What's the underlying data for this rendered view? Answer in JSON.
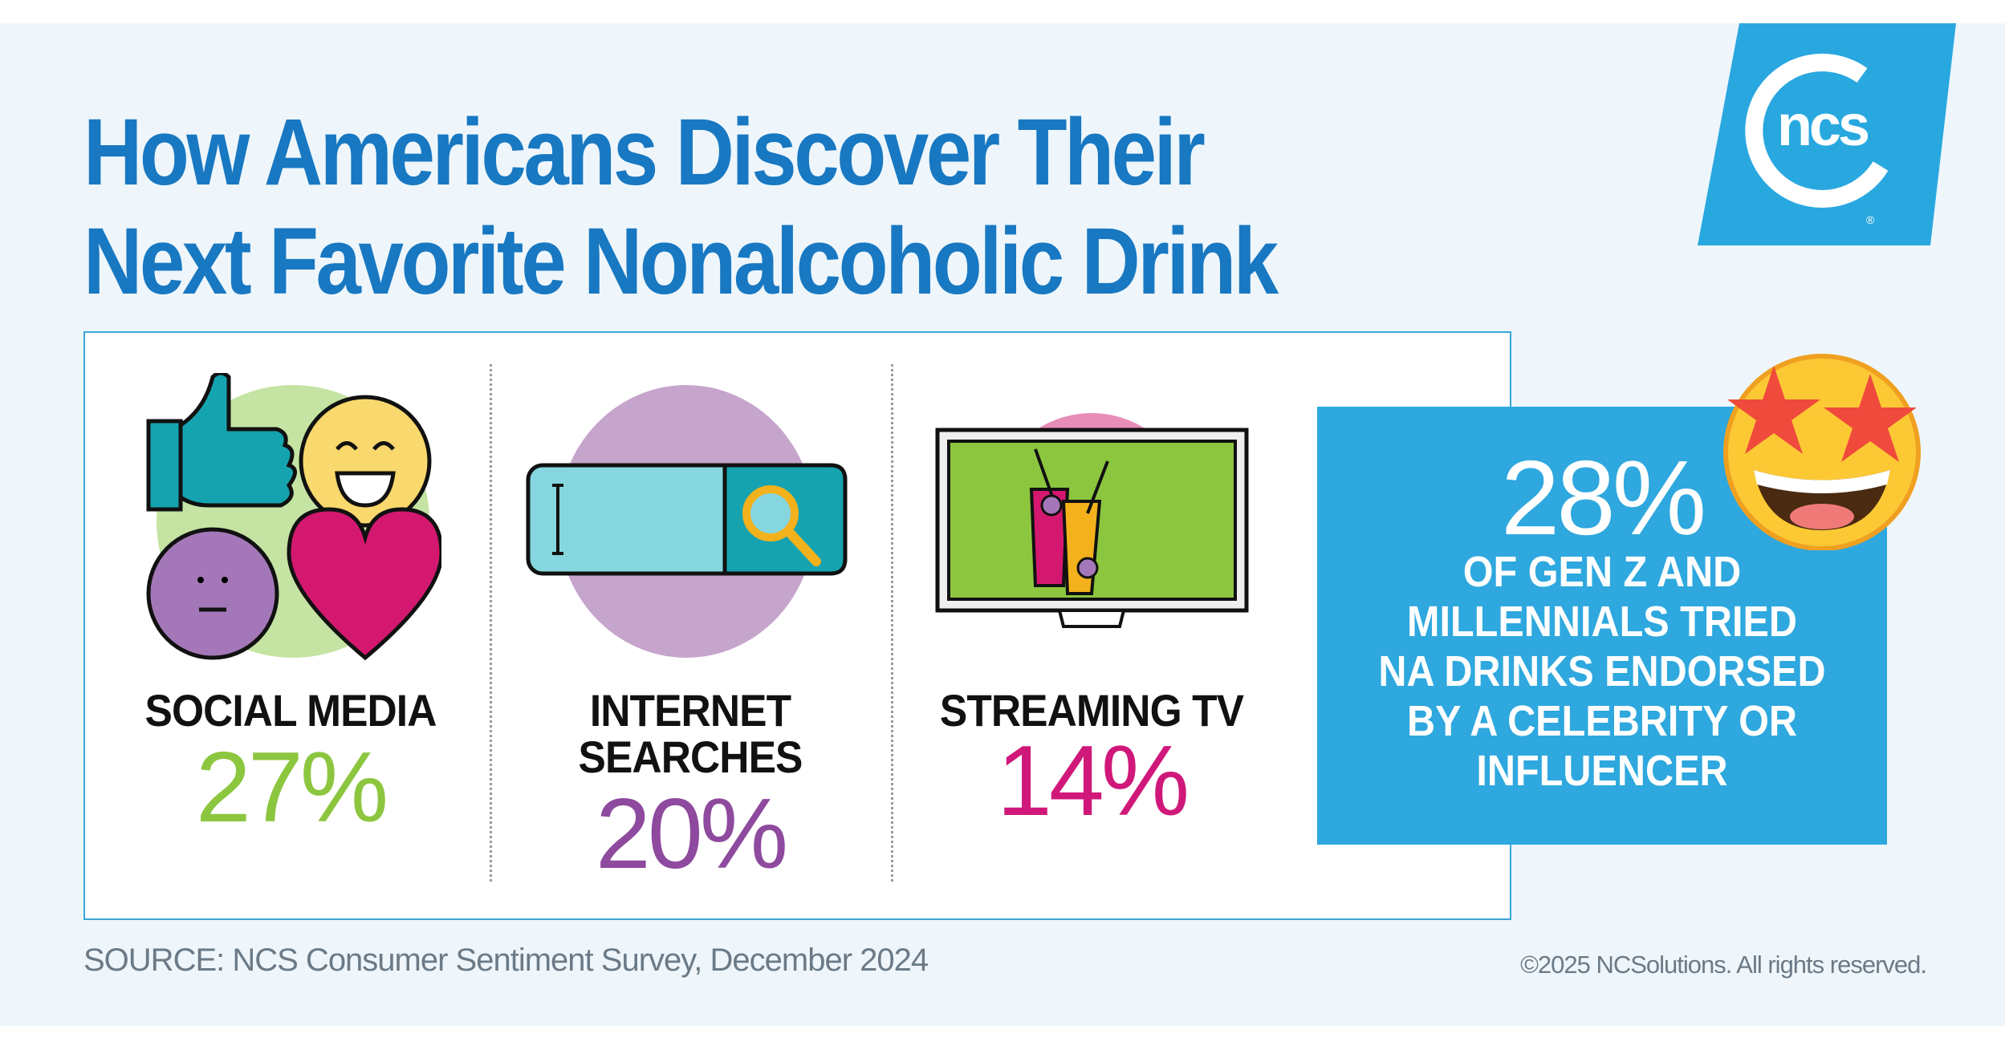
{
  "title": {
    "line1": "How Americans Discover Their",
    "line2": "Next Favorite Nonalcoholic Drink"
  },
  "logo": {
    "text": "ncs",
    "registered": "®"
  },
  "colors": {
    "title": "#1878c2",
    "brand": "#29a8e0",
    "social": "#8cc63f",
    "internet": "#8e4a9e",
    "streaming": "#d0187a"
  },
  "columns": [
    {
      "label_lines": [
        "SOCIAL MEDIA"
      ],
      "value": "27%",
      "icon": "social-media-icons"
    },
    {
      "label_lines": [
        "INTERNET",
        "SEARCHES"
      ],
      "value": "20%",
      "icon": "search-bar-icon"
    },
    {
      "label_lines": [
        "STREAMING TV"
      ],
      "value": "14%",
      "icon": "tv-drinks-icon"
    }
  ],
  "callout": {
    "value": "28%",
    "lines": [
      "OF GEN Z AND",
      "MILLENNIALS TRIED",
      "NA DRINKS ENDORSED",
      "BY A CELEBRITY OR",
      "INFLUENCER"
    ],
    "icon": "star-struck-emoji"
  },
  "footer": {
    "source": "SOURCE: NCS Consumer Sentiment Survey, December 2024",
    "copyright": "©2025 NCSolutions. All rights reserved."
  }
}
